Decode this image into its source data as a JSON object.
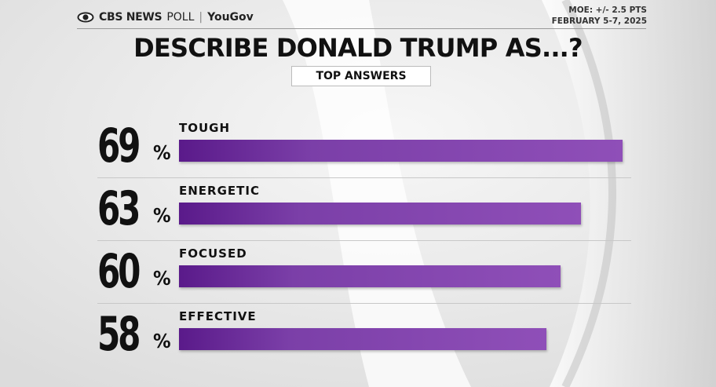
{
  "header": {
    "brand_cbs": "CBS NEWS",
    "brand_poll": "POLL",
    "brand_sep": "|",
    "brand_partner": "YouGov",
    "moe": "MOE: +/- 2.5 PTS",
    "dates": "FEBRUARY 5-7, 2025"
  },
  "colors": {
    "bar_dark": "#5a1a8a",
    "bar_light": "#8f4fb8",
    "text": "#111111"
  },
  "chart_data": {
    "type": "bar",
    "title": "DESCRIBE DONALD TRUMP AS...?",
    "subtitle": "TOP ANSWERS",
    "categories": [
      "TOUGH",
      "ENERGETIC",
      "FOCUSED",
      "EFFECTIVE"
    ],
    "values": [
      69,
      63,
      60,
      58
    ],
    "value_labels": [
      "69",
      "63",
      "60",
      "58"
    ],
    "unit": "%",
    "orientation": "horizontal",
    "grid": false,
    "legend": "none"
  }
}
